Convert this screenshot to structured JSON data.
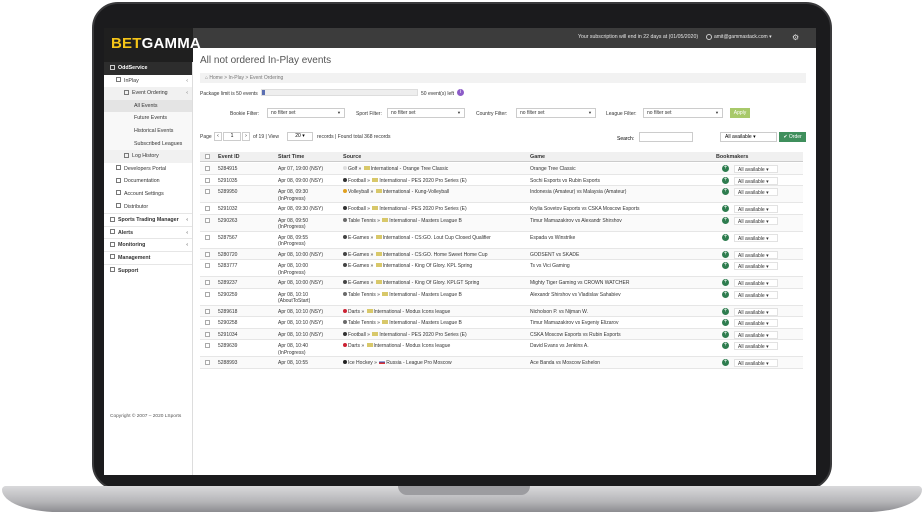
{
  "brand": {
    "part1": "BET",
    "part2": "GAMMA"
  },
  "header": {
    "subscription_note": "Your subscription will end in 22 days at (01/05/2020)",
    "user_email": "amit@gammastack.com ▾"
  },
  "sidebar": {
    "items": [
      {
        "label": "OddService",
        "arrow": "",
        "level": "sec"
      },
      {
        "label": "InPlay",
        "arrow": "‹",
        "level": "l1"
      },
      {
        "label": "Event Ordering",
        "arrow": "‹",
        "level": "l2"
      },
      {
        "label": "All Events",
        "arrow": "",
        "level": "l3 act"
      },
      {
        "label": "Future Events",
        "arrow": "",
        "level": "l3"
      },
      {
        "label": "Historical Events",
        "arrow": "",
        "level": "l3"
      },
      {
        "label": "Subscribed Leagues",
        "arrow": "",
        "level": "l3"
      },
      {
        "label": "Log History",
        "arrow": "",
        "level": "l2"
      },
      {
        "label": "Developers Portal",
        "arrow": "",
        "level": "l1"
      },
      {
        "label": "Documentation",
        "arrow": "",
        "level": "l1"
      },
      {
        "label": "Account Settings",
        "arrow": "",
        "level": "l1"
      },
      {
        "label": "Distributor",
        "arrow": "",
        "level": "l1"
      },
      {
        "label": "Sports Trading Manager",
        "arrow": "‹",
        "level": "bd"
      },
      {
        "label": "Alerts",
        "arrow": "‹",
        "level": "bd"
      },
      {
        "label": "Monitoring",
        "arrow": "‹",
        "level": "bd"
      },
      {
        "label": "Management",
        "arrow": "",
        "level": "bd"
      },
      {
        "label": "Support",
        "arrow": "",
        "level": "bd"
      }
    ],
    "copyright": "Copyright © 2007 – 2020 LSports"
  },
  "main": {
    "title": "All not ordered In-Play events",
    "breadcrumb": "⌂ Home  >  In-Play  >  Event Ordering",
    "package_label": "Package limit is 50 events",
    "package_progress": 0.02,
    "events_left": "50 event(s) left",
    "filters": {
      "bookie_label": "Bookie Filter:",
      "bookie_value": "no filter set",
      "sport_label": "Sport Filter:",
      "sport_value": "no filter set",
      "country_label": "Country Filter:",
      "country_value": "no filter set",
      "league_label": "League Filter:",
      "league_value": "no filter set",
      "apply": "Apply"
    },
    "paging": {
      "page_label": "Page",
      "prev": "‹",
      "page": "1",
      "next": "›",
      "of": "of 19 | View",
      "view": "20 ▾",
      "records": "records | Found total 368 records"
    },
    "search_label": "Search:",
    "all_available": "All available  ▾",
    "order_button": "✔ Order",
    "columns": [
      "Event ID",
      "Start Time",
      "Source",
      "Game",
      "Bookmakers"
    ],
    "rows": [
      {
        "id": "5284915",
        "time": "Apr 07, 19:00 (NSY)",
        "time2": "",
        "sport": "Golf",
        "country": "International",
        "league": "Orange Tree Classic",
        "game": "Orange Tree Classic",
        "h": 1
      },
      {
        "id": "5291035",
        "time": "Apr 08, 09:00 (NSY)",
        "time2": "",
        "sport": "Football",
        "country": "International",
        "league": "PES 2020 Pro Series (E)",
        "game": "Sochi Esports vs Rubin Esports",
        "h": 1
      },
      {
        "id": "5289950",
        "time": "Apr 08, 09:30",
        "time2": "(InProgress)",
        "sport": "Volleyball",
        "country": "International",
        "league": "Kung-Volleyball",
        "game": "Indonesia (Amateur) vs Malaysia (Amateur)",
        "h": 2
      },
      {
        "id": "5291032",
        "time": "Apr 08, 09:30 (NSY)",
        "time2": "",
        "sport": "Football",
        "country": "International",
        "league": "PES 2020 Pro Series (E)",
        "game": "Krylia Sovetov Esports vs CSKA Moscow Esports",
        "h": 1
      },
      {
        "id": "5290263",
        "time": "Apr 08, 09:50",
        "time2": "(InProgress)",
        "sport": "Table Tennis",
        "country": "International",
        "league": "Masters League B",
        "game": "Timur Mamazakirov vs Alexandr Shirshov",
        "h": 2
      },
      {
        "id": "5287567",
        "time": "Apr 08, 09:55",
        "time2": "(InProgress)",
        "sport": "E-Games",
        "country": "International",
        "league": "CS:GO. Lout Cup Closed Qualifier",
        "game": "Espada vs Winstrike",
        "h": 2
      },
      {
        "id": "5280720",
        "time": "Apr 08, 10:00 (NSY)",
        "time2": "",
        "sport": "E-Games",
        "country": "International",
        "league": "CS:GO. Home Sweet Home Cup",
        "game": "GODSENT vs SKADE",
        "h": 1
      },
      {
        "id": "5283777",
        "time": "Apr 08, 10:00",
        "time2": "(InProgress)",
        "sport": "E-Games",
        "country": "International",
        "league": "King Of Glory. KPL Spring",
        "game": "Ts vs Vici Gaming",
        "h": 2
      },
      {
        "id": "5289237",
        "time": "Apr 08, 10:00 (NSY)",
        "time2": "",
        "sport": "E-Games",
        "country": "International",
        "league": "King Of Glory. KPLGT Spring",
        "game": "Mighty Tiger Gaming vs CROWN WATCHER",
        "h": 1
      },
      {
        "id": "5290259",
        "time": "Apr 08, 10:10",
        "time2": "(AboutToStart)",
        "sport": "Table Tennis",
        "country": "International",
        "league": "Masters League B",
        "game": "Alexandr Shirshov vs Vladislav Sahabiev",
        "h": 2
      },
      {
        "id": "5289618",
        "time": "Apr 08, 10:10 (NSY)",
        "time2": "",
        "sport": "Darts",
        "country": "International",
        "league": "Modus Icons league",
        "game": "Nicholson P. vs Nijman W.",
        "h": 1
      },
      {
        "id": "5290258",
        "time": "Apr 08, 10:10 (NSY)",
        "time2": "",
        "sport": "Table Tennis",
        "country": "International",
        "league": "Masters League B",
        "game": "Timur Mamazakirov vs Evgeniy Elizarov",
        "h": 1
      },
      {
        "id": "5291034",
        "time": "Apr 08, 10:10 (NSY)",
        "time2": "",
        "sport": "Football",
        "country": "International",
        "league": "PES 2020 Pro Series (E)",
        "game": "CSKA Moscow Esports vs Rubin Esports",
        "h": 1
      },
      {
        "id": "5289639",
        "time": "Apr 08, 10:40",
        "time2": "(InProgress)",
        "sport": "Darts",
        "country": "International",
        "league": "Modus Icons league",
        "game": "David Evans vs Jenkins A.",
        "h": 2
      },
      {
        "id": "5288993",
        "time": "Apr 08, 10:55",
        "time2": "",
        "sport": "Ice Hockey",
        "country": "Russia",
        "league": "League Pro Moscow",
        "game": "Ace Banda vs Moscow Eshelon",
        "h": 1
      }
    ],
    "row_bookmaker": "All available   ▾"
  },
  "colors": {
    "accent": "#2e7d4f",
    "brand_yellow": "#f5c518",
    "apply": "#a8c96a"
  }
}
